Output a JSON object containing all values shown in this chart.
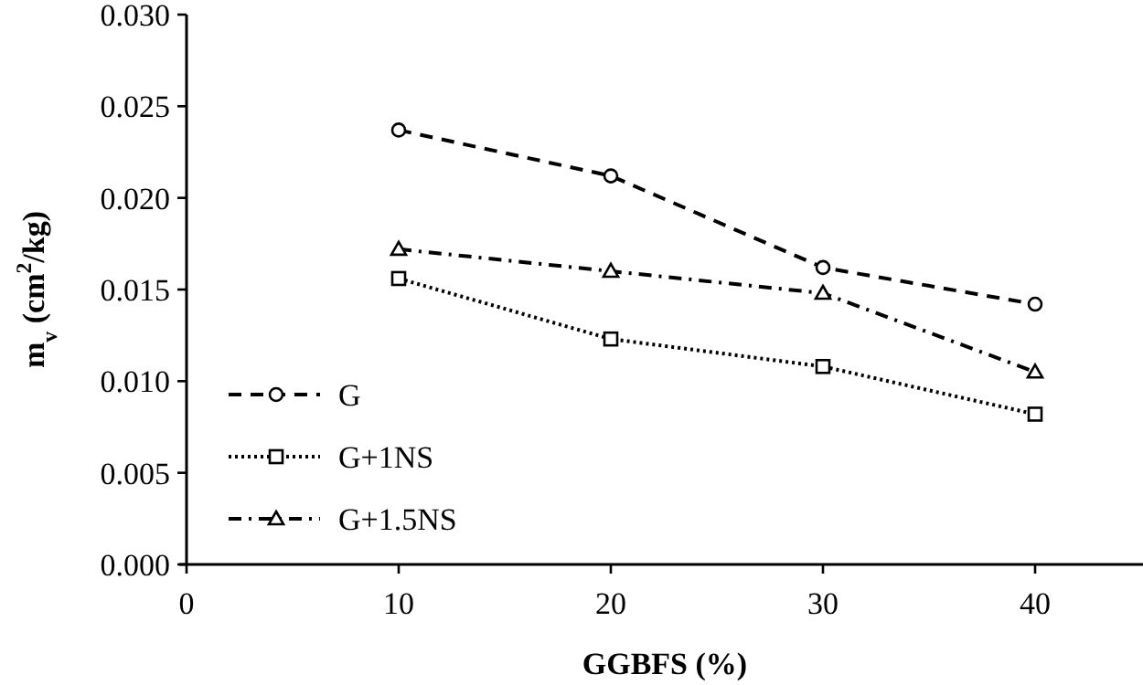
{
  "chart_data": {
    "type": "line",
    "xlabel": "GGBFS (%)",
    "ylabel": "m$_{v}$ (cm$^{2}$/kg)",
    "x": [
      10,
      20,
      30,
      40
    ],
    "series": [
      {
        "name": "G",
        "color": "#000000",
        "marker": "circle",
        "line_style": "dashed",
        "values": [
          0.0237,
          0.0212,
          0.0162,
          0.0142
        ]
      },
      {
        "name": "G+1NS",
        "color": "#000000",
        "marker": "square",
        "line_style": "dotted",
        "values": [
          0.0156,
          0.0123,
          0.0108,
          0.0082
        ]
      },
      {
        "name": "G+1.5NS",
        "color": "#000000",
        "marker": "triangle",
        "line_style": "dashdot",
        "values": [
          0.0172,
          0.016,
          0.0148,
          0.0105
        ]
      }
    ],
    "xlim": [
      0,
      45
    ],
    "xticks": [
      0,
      10,
      20,
      30,
      40
    ],
    "ylim": [
      0,
      0.03
    ],
    "yticks": [
      {
        "value": 0,
        "label": "0.000"
      },
      {
        "value": 0.005,
        "label": "0.005"
      },
      {
        "value": 0.01,
        "label": "0.010"
      },
      {
        "value": 0.015,
        "label": "0.015"
      },
      {
        "value": 0.02,
        "label": "0.020"
      },
      {
        "value": 0.025,
        "label": "0.025"
      },
      {
        "value": 0.03,
        "label": "0.030"
      }
    ],
    "grid": false,
    "legend": "bottom left"
  }
}
